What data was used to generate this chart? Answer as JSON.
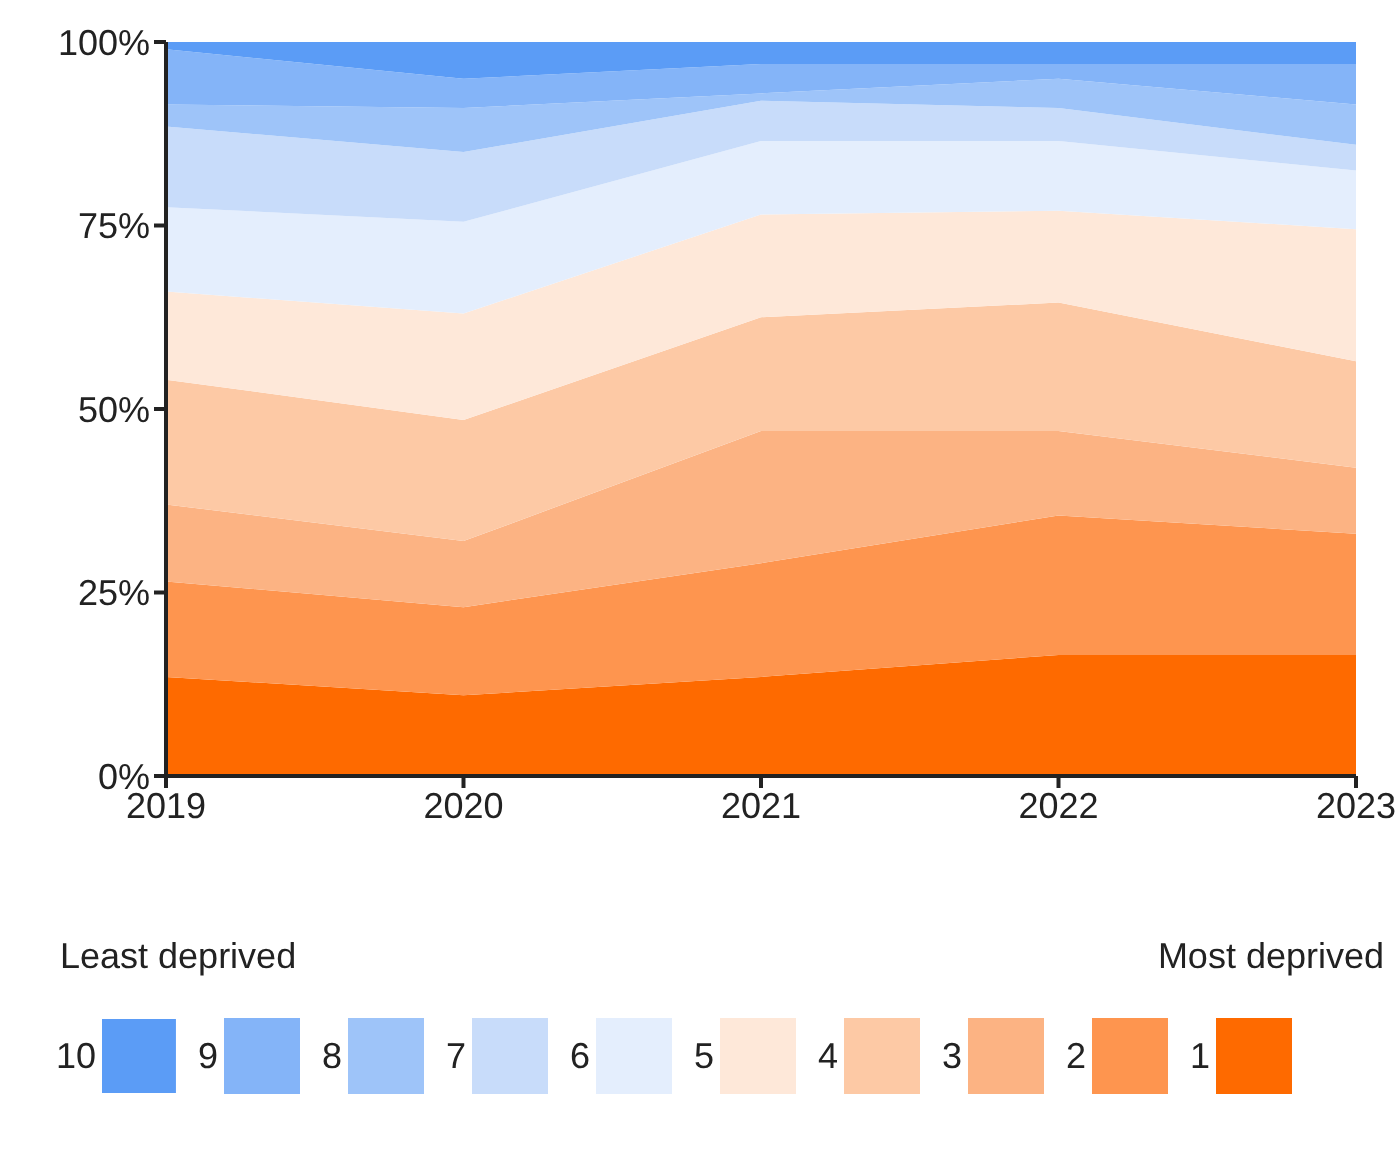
{
  "chart_data": {
    "type": "area",
    "stacked": true,
    "categories": [
      "2019",
      "2020",
      "2021",
      "2022",
      "2023"
    ],
    "ylim": [
      0,
      100
    ],
    "yticks": [
      {
        "value": 0,
        "label": "0%"
      },
      {
        "value": 25,
        "label": "25%"
      },
      {
        "value": 50,
        "label": "50%"
      },
      {
        "value": 75,
        "label": "75%"
      },
      {
        "value": 100,
        "label": "100%"
      }
    ],
    "grid": false,
    "legend": "bottom",
    "annotations": [
      "Least deprived",
      "Most deprived"
    ],
    "series": [
      {
        "name": "1",
        "color": "#fe6a00",
        "values": [
          13.5,
          11,
          13.5,
          16.5,
          16.5
        ]
      },
      {
        "name": "2",
        "color": "#fe954f",
        "values": [
          13,
          12,
          15.5,
          19,
          16.5
        ]
      },
      {
        "name": "3",
        "color": "#fcb383",
        "values": [
          10.5,
          9,
          18,
          11.5,
          9
        ]
      },
      {
        "name": "4",
        "color": "#fdc9a5",
        "values": [
          17,
          16.5,
          15.5,
          17.5,
          14.5
        ]
      },
      {
        "name": "5",
        "color": "#fee8d9",
        "values": [
          12,
          14.5,
          14,
          12.5,
          18
        ]
      },
      {
        "name": "6",
        "color": "#e4eefd",
        "values": [
          11.5,
          12.5,
          10,
          9.5,
          8
        ]
      },
      {
        "name": "7",
        "color": "#c8dcfa",
        "values": [
          11,
          9.5,
          5.5,
          4.5,
          3.5
        ]
      },
      {
        "name": "8",
        "color": "#9ec4f9",
        "values": [
          3,
          6,
          1,
          4,
          5.5
        ]
      },
      {
        "name": "9",
        "color": "#84b4f8",
        "values": [
          7.5,
          4,
          4,
          2,
          5.5
        ]
      },
      {
        "name": "10",
        "color": "#5b9cf6",
        "values": [
          1,
          5,
          3,
          3,
          3
        ]
      }
    ]
  }
}
